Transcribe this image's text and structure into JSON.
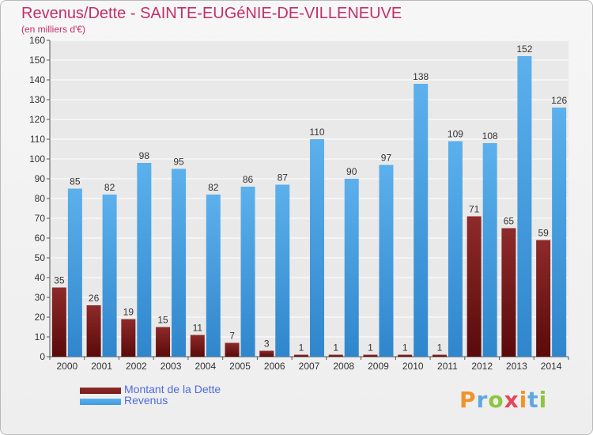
{
  "chart_data": {
    "type": "bar",
    "title": "Revenus/Dette - SAINTE-EUGéNIE-DE-VILLENEUVE",
    "subtitle": "(en milliers d'€)",
    "categories": [
      "2000",
      "2001",
      "2002",
      "2003",
      "2004",
      "2005",
      "2006",
      "2007",
      "2008",
      "2009",
      "2010",
      "2011",
      "2012",
      "2013",
      "2014"
    ],
    "series": [
      {
        "name": "Montant de la Dette",
        "color": "#7a1a1a",
        "values": [
          35,
          26,
          19,
          15,
          11,
          7,
          3,
          1,
          1,
          1,
          1,
          1,
          71,
          65,
          59
        ]
      },
      {
        "name": "Revenus",
        "color": "#3d9ae0",
        "values": [
          85,
          82,
          98,
          95,
          82,
          86,
          87,
          110,
          90,
          97,
          138,
          109,
          108,
          152,
          126
        ]
      }
    ],
    "ylim": [
      0,
      160
    ],
    "yticks": [
      0,
      10,
      20,
      30,
      40,
      50,
      60,
      70,
      80,
      90,
      100,
      110,
      120,
      130,
      140,
      150,
      160
    ],
    "grid": true,
    "legend_position": "bottom-left"
  },
  "logo": {
    "letters": [
      "P",
      "r",
      "o",
      "x",
      "i",
      "t",
      "i"
    ],
    "colors": [
      "#f0932b",
      "#5fa8e0",
      "#8cc63f",
      "#e6455a",
      "#f0932b",
      "#5fa8e0",
      "#8cc63f"
    ]
  }
}
